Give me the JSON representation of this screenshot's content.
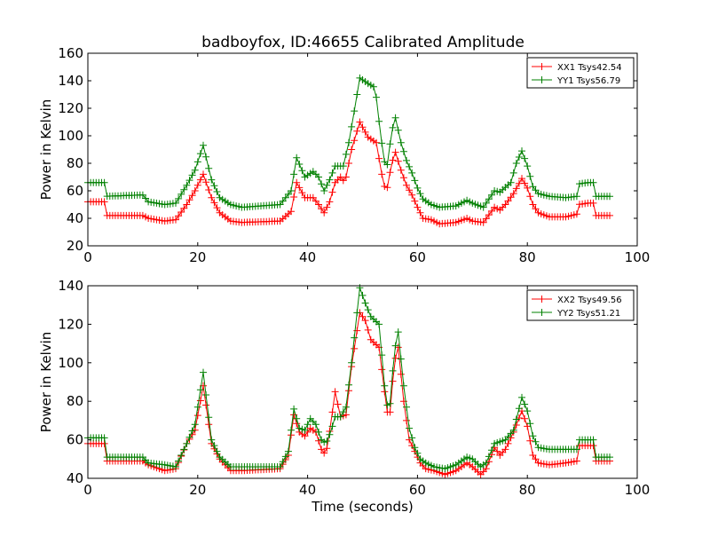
{
  "title": "badboyfox, ID:46655 Calibrated Amplitude",
  "chart_data": [
    {
      "type": "line",
      "title": "badboyfox, ID:46655 Calibrated Amplitude",
      "xlabel": "",
      "ylabel": "Power in Kelvin",
      "xlim": [
        0,
        100
      ],
      "ylim": [
        20,
        160
      ],
      "xticks": [
        "0",
        "20",
        "40",
        "60",
        "80",
        "100"
      ],
      "yticks": [
        "20",
        "40",
        "60",
        "80",
        "100",
        "120",
        "140",
        "160"
      ],
      "grid": false,
      "legend_position": "top-right",
      "marker": "+",
      "x_range_note": "samples every 0.5 s from 0 to 95",
      "series": [
        {
          "name": "XX1 Tsys42.54",
          "color": "#ff0000",
          "points": [
            [
              0,
              52
            ],
            [
              3,
              52
            ],
            [
              3.2,
              42
            ],
            [
              10,
              42
            ],
            [
              11,
              40
            ],
            [
              14,
              38
            ],
            [
              16,
              39
            ],
            [
              18,
              50
            ],
            [
              19.5,
              60
            ],
            [
              21,
              72
            ],
            [
              22.5,
              55
            ],
            [
              24,
              44
            ],
            [
              26,
              38
            ],
            [
              28,
              37
            ],
            [
              35,
              38
            ],
            [
              37,
              45
            ],
            [
              38,
              66
            ],
            [
              39.5,
              55
            ],
            [
              41,
              55
            ],
            [
              42,
              50
            ],
            [
              43,
              44
            ],
            [
              44,
              52
            ],
            [
              45,
              66
            ],
            [
              46,
              70
            ],
            [
              46.8,
              66
            ],
            [
              48,
              90
            ],
            [
              49.5,
              110
            ],
            [
              51,
              99
            ],
            [
              52.5,
              95
            ],
            [
              53.5,
              72
            ],
            [
              54.3,
              58
            ],
            [
              55.3,
              80
            ],
            [
              56,
              88
            ],
            [
              57,
              75
            ],
            [
              58,
              64
            ],
            [
              59,
              57
            ],
            [
              60,
              48
            ],
            [
              61,
              40
            ],
            [
              62.5,
              39
            ],
            [
              64,
              36
            ],
            [
              67,
              37
            ],
            [
              69,
              40
            ],
            [
              70,
              38
            ],
            [
              72,
              37
            ],
            [
              74,
              48
            ],
            [
              75,
              46
            ],
            [
              76,
              50
            ],
            [
              77.5,
              58
            ],
            [
              79,
              69
            ],
            [
              80,
              62
            ],
            [
              81,
              50
            ],
            [
              82,
              44
            ],
            [
              84,
              41
            ],
            [
              87,
              41
            ],
            [
              89,
              43
            ],
            [
              89.3,
              50
            ],
            [
              91,
              51
            ],
            [
              92,
              51
            ],
            [
              92.2,
              42
            ],
            [
              95,
              42
            ]
          ]
        },
        {
          "name": "YY1 Tsys56.79",
          "color": "#008000",
          "points": [
            [
              0,
              66
            ],
            [
              3,
              66
            ],
            [
              3.2,
              56
            ],
            [
              10,
              57
            ],
            [
              11,
              52
            ],
            [
              14,
              50
            ],
            [
              16,
              51
            ],
            [
              18,
              64
            ],
            [
              19.5,
              75
            ],
            [
              21,
              93
            ],
            [
              22.5,
              68
            ],
            [
              24,
              55
            ],
            [
              26,
              50
            ],
            [
              28,
              48
            ],
            [
              35,
              50
            ],
            [
              37,
              60
            ],
            [
              38,
              84
            ],
            [
              39.5,
              70
            ],
            [
              41,
              74
            ],
            [
              42,
              70
            ],
            [
              43,
              60
            ],
            [
              44,
              68
            ],
            [
              45,
              78
            ],
            [
              46.5,
              78
            ],
            [
              47.5,
              95
            ],
            [
              48.5,
              118
            ],
            [
              49.5,
              142
            ],
            [
              51,
              138
            ],
            [
              52.3,
              135
            ],
            [
              53.3,
              100
            ],
            [
              54.3,
              73
            ],
            [
              55.3,
              103
            ],
            [
              56,
              113
            ],
            [
              57,
              95
            ],
            [
              58,
              82
            ],
            [
              59,
              73
            ],
            [
              60,
              62
            ],
            [
              61,
              54
            ],
            [
              62.5,
              50
            ],
            [
              64,
              48
            ],
            [
              67,
              49
            ],
            [
              69,
              53
            ],
            [
              70,
              51
            ],
            [
              72,
              48
            ],
            [
              74,
              60
            ],
            [
              75,
              59
            ],
            [
              77,
              66
            ],
            [
              78,
              80
            ],
            [
              79,
              89
            ],
            [
              80,
              78
            ],
            [
              81,
              63
            ],
            [
              82,
              58
            ],
            [
              84,
              56
            ],
            [
              87,
              55
            ],
            [
              89,
              56
            ],
            [
              89.3,
              65
            ],
            [
              91,
              66
            ],
            [
              92,
              66
            ],
            [
              92.2,
              56
            ],
            [
              95,
              56
            ]
          ]
        }
      ]
    },
    {
      "type": "line",
      "title": "",
      "xlabel": "Time (seconds)",
      "ylabel": "Power in Kelvin",
      "xlim": [
        0,
        100
      ],
      "ylim": [
        40,
        140
      ],
      "xticks": [
        "0",
        "20",
        "40",
        "60",
        "80",
        "100"
      ],
      "yticks": [
        "40",
        "60",
        "80",
        "100",
        "120",
        "140"
      ],
      "grid": false,
      "legend_position": "top-right",
      "marker": "+",
      "x_range_note": "samples every 0.5 s from 0 to 95",
      "series": [
        {
          "name": "XX2 Tsys49.56",
          "color": "#ff0000",
          "points": [
            [
              0,
              58
            ],
            [
              3,
              58
            ],
            [
              3.2,
              49
            ],
            [
              10,
              49
            ],
            [
              11,
              47
            ],
            [
              14,
              44
            ],
            [
              16,
              45
            ],
            [
              18,
              58
            ],
            [
              19.5,
              65
            ],
            [
              21,
              88
            ],
            [
              22.5,
              58
            ],
            [
              24,
              50
            ],
            [
              26,
              44
            ],
            [
              28,
              44
            ],
            [
              35,
              45
            ],
            [
              36.5,
              52
            ],
            [
              37.5,
              73
            ],
            [
              38.5,
              64
            ],
            [
              39.5,
              62
            ],
            [
              40.5,
              66
            ],
            [
              41.5,
              64
            ],
            [
              42.5,
              55
            ],
            [
              43.3,
              52
            ],
            [
              44.2,
              68
            ],
            [
              45,
              85
            ],
            [
              46,
              72
            ],
            [
              47,
              73
            ],
            [
              48,
              98
            ],
            [
              49.5,
              126
            ],
            [
              50.5,
              122
            ],
            [
              51.5,
              112
            ],
            [
              53,
              108
            ],
            [
              54,
              85
            ],
            [
              54.8,
              68
            ],
            [
              55.8,
              100
            ],
            [
              56.5,
              108
            ],
            [
              57.5,
              80
            ],
            [
              58.5,
              60
            ],
            [
              59.5,
              54
            ],
            [
              60.5,
              48
            ],
            [
              61.5,
              45
            ],
            [
              63,
              44
            ],
            [
              65,
              42
            ],
            [
              67,
              44
            ],
            [
              69,
              48
            ],
            [
              70,
              46
            ],
            [
              71.5,
              42
            ],
            [
              72.5,
              45
            ],
            [
              74,
              56
            ],
            [
              75,
              52
            ],
            [
              76,
              55
            ],
            [
              77.5,
              64
            ],
            [
              79,
              75
            ],
            [
              80,
              67
            ],
            [
              81,
              52
            ],
            [
              82,
              48
            ],
            [
              84,
              47
            ],
            [
              87,
              48
            ],
            [
              89,
              49
            ],
            [
              89.3,
              57
            ],
            [
              91,
              57
            ],
            [
              92,
              57
            ],
            [
              92.2,
              49
            ],
            [
              95,
              49
            ]
          ]
        },
        {
          "name": "YY2 Tsys51.21",
          "color": "#008000",
          "points": [
            [
              0,
              61
            ],
            [
              3,
              61
            ],
            [
              3.2,
              51
            ],
            [
              10,
              51
            ],
            [
              11,
              48
            ],
            [
              14,
              47
            ],
            [
              16,
              46
            ],
            [
              18,
              58
            ],
            [
              19.5,
              68
            ],
            [
              21,
              95
            ],
            [
              22.5,
              60
            ],
            [
              24,
              51
            ],
            [
              26,
              46
            ],
            [
              28,
              46
            ],
            [
              35,
              46
            ],
            [
              36.5,
              54
            ],
            [
              37.5,
              76
            ],
            [
              38.5,
              66
            ],
            [
              39.5,
              65
            ],
            [
              40.5,
              71
            ],
            [
              41.5,
              68
            ],
            [
              42.5,
              60
            ],
            [
              43.3,
              58
            ],
            [
              44.2,
              64
            ],
            [
              45,
              72
            ],
            [
              46,
              72
            ],
            [
              47,
              77
            ],
            [
              48,
              100
            ],
            [
              49.5,
              139
            ],
            [
              50.5,
              131
            ],
            [
              51.5,
              124
            ],
            [
              53,
              120
            ],
            [
              54,
              88
            ],
            [
              54.8,
              72
            ],
            [
              55.8,
              106
            ],
            [
              56.5,
              116
            ],
            [
              57.5,
              88
            ],
            [
              58.5,
              66
            ],
            [
              59.5,
              56
            ],
            [
              60.5,
              50
            ],
            [
              61.5,
              48
            ],
            [
              63,
              46
            ],
            [
              65,
              45
            ],
            [
              67,
              47
            ],
            [
              69,
              51
            ],
            [
              70,
              50
            ],
            [
              71.5,
              46
            ],
            [
              72.5,
              48
            ],
            [
              74,
              58
            ],
            [
              75,
              59
            ],
            [
              76,
              60
            ],
            [
              77.5,
              65
            ],
            [
              79,
              82
            ],
            [
              80,
              75
            ],
            [
              81,
              62
            ],
            [
              82,
              56
            ],
            [
              84,
              55
            ],
            [
              87,
              55
            ],
            [
              89,
              55
            ],
            [
              89.3,
              60
            ],
            [
              91,
              60
            ],
            [
              92,
              60
            ],
            [
              92.2,
              51
            ],
            [
              95,
              51
            ]
          ]
        }
      ]
    }
  ]
}
